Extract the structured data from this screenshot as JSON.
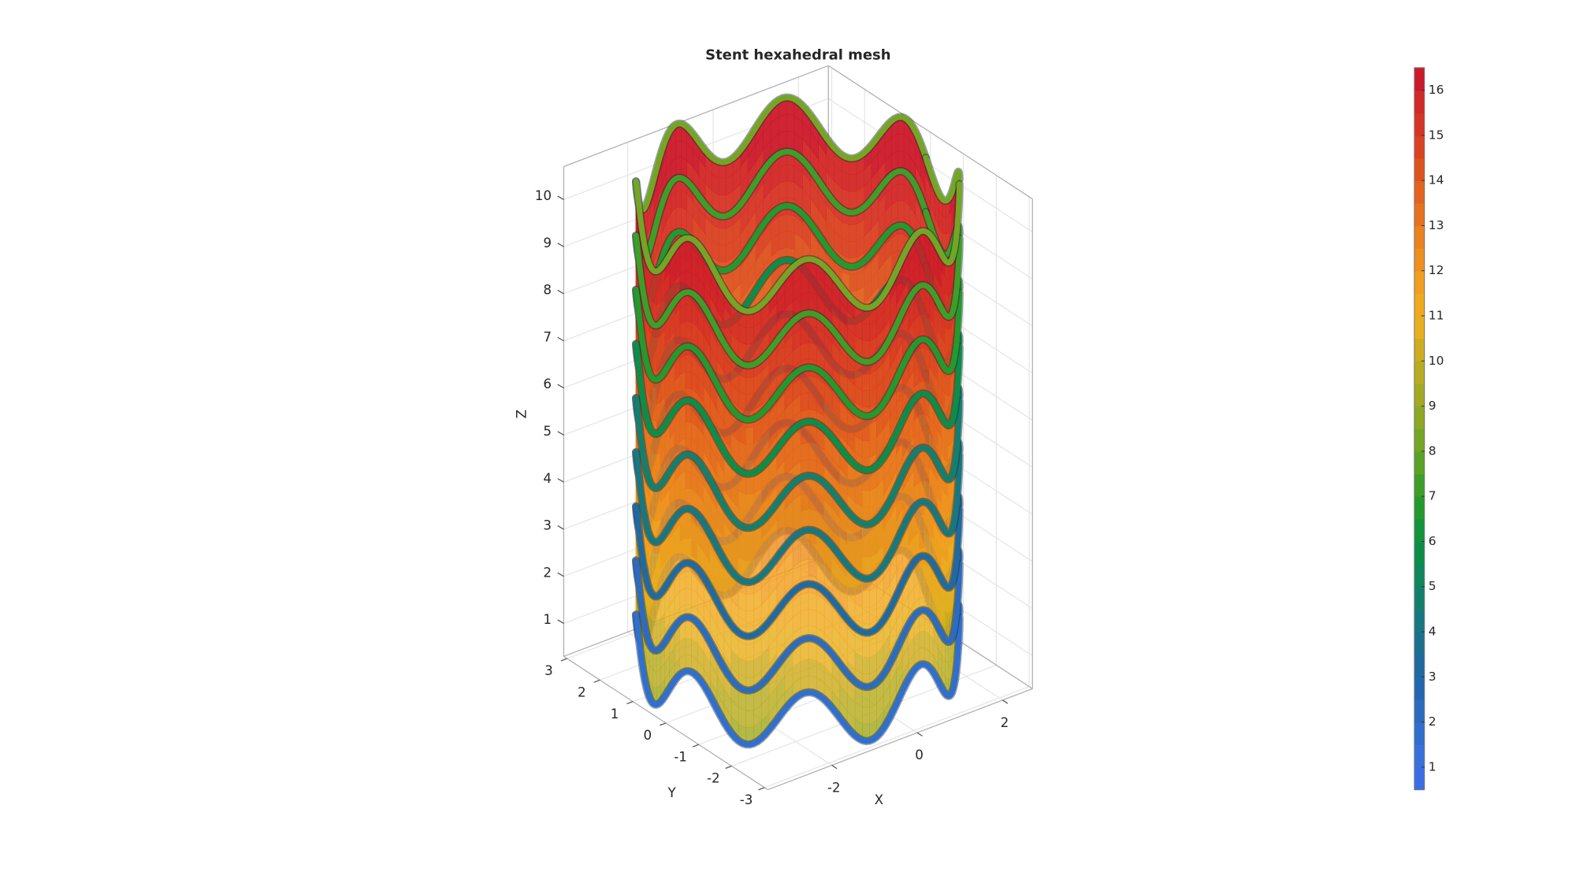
{
  "chart_data": {
    "type": "surface3d",
    "title": "Stent hexahedral mesh",
    "xlabel": "X",
    "ylabel": "Y",
    "zlabel": "Z",
    "xlim": [
      -3.5,
      2.7
    ],
    "ylim": [
      -3.1,
      3.1
    ],
    "zlim": [
      0.3,
      10.7
    ],
    "xticks": [
      -2,
      0,
      2
    ],
    "yticks": [
      -3,
      -2,
      -1,
      0,
      1,
      2,
      3
    ],
    "zticks": [
      1,
      2,
      3,
      4,
      5,
      6,
      7,
      8,
      9,
      10
    ],
    "grid": true,
    "colorbar": {
      "clim": [
        0.5,
        16.5
      ],
      "ticks": [
        1,
        2,
        3,
        4,
        5,
        6,
        7,
        8,
        9,
        10,
        11,
        12,
        13,
        14,
        15,
        16
      ],
      "colormap": [
        "#3a6ee8",
        "#3871dc",
        "#2f6fd0",
        "#2a6cc0",
        "#2268b0",
        "#1f6aa0",
        "#1b7090",
        "#167880",
        "#12806d",
        "#0e875a",
        "#0b8e48",
        "#109538",
        "#239a2c",
        "#3e9f26",
        "#5aa324",
        "#74a624",
        "#8da823",
        "#a3aa22",
        "#b8ac20",
        "#ceac1f",
        "#e8b020",
        "#f0aa20",
        "#f29e1e",
        "#ee901e",
        "#ea821e",
        "#e6721e",
        "#e2621e",
        "#de521e",
        "#da4220",
        "#d63424",
        "#d22826",
        "#cc1a2a"
      ]
    }
  }
}
